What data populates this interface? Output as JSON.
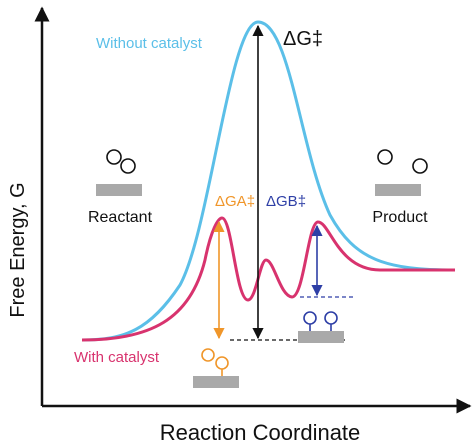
{
  "axes": {
    "x_label": "Reaction Coordinate",
    "y_label": "Free Energy, G"
  },
  "curves": {
    "uncatalyzed_label": "Without catalyst",
    "catalyzed_label": "With catalyst"
  },
  "annotations": {
    "delta_g_main": "ΔG‡",
    "delta_g_a": "ΔGA‡",
    "delta_g_b": "ΔGB‡"
  },
  "states": {
    "reactant": "Reactant",
    "product": "Product"
  },
  "colors": {
    "uncatalyzed": "#5bbfe8",
    "catalyzed": "#d8336e",
    "barrier_a": "#f0962a",
    "barrier_b": "#2e3fa6",
    "axis": "#111111",
    "surface": "#a9a9a9"
  }
}
